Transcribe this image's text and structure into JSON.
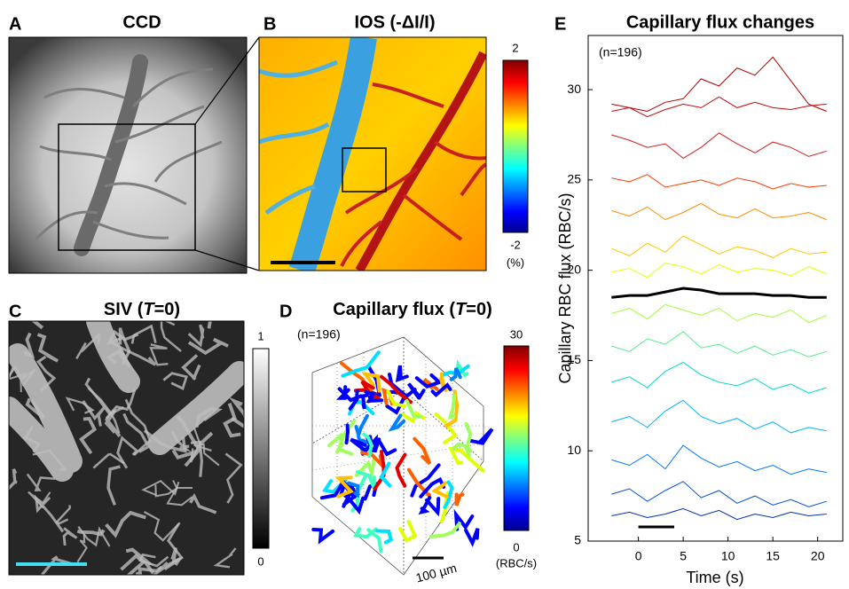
{
  "panels": {
    "A": {
      "letter": "A",
      "title": "CCD"
    },
    "B": {
      "letter": "B",
      "title": "IOS (-ΔI/I)",
      "colorbar": {
        "max": "2",
        "min": "-2",
        "unit": "(%)"
      }
    },
    "C": {
      "letter": "C",
      "title": [
        "SIV (",
        "T",
        "=0)"
      ],
      "colorbar": {
        "max": "1",
        "min": "0"
      }
    },
    "D": {
      "letter": "D",
      "title": [
        "Capillary flux (",
        "T",
        "=0)"
      ],
      "annotation": "(n=196)",
      "scale": "100 µm",
      "colorbar": {
        "max": "30",
        "min": "0",
        "unit": "(RBC/s)"
      }
    }
  },
  "chart_data": {
    "type": "line",
    "letter": "E",
    "title": "Capillary flux changes",
    "annotation": "(n=196)",
    "x_label": "Time (s)",
    "y_label": "Capillary RBC flux (RBC/s)",
    "x": [
      -3,
      -1,
      1,
      3,
      5,
      7,
      9,
      11,
      13,
      15,
      17,
      19,
      21
    ],
    "xlim": [
      -5.6,
      22.8
    ],
    "ylim": [
      5,
      33
    ],
    "xticks": [
      0,
      5,
      10,
      15,
      20
    ],
    "yticks": [
      5,
      10,
      15,
      20,
      25,
      30
    ],
    "series": [
      {
        "color": "#b40000",
        "width": 1,
        "values": [
          29.2,
          29.0,
          28.8,
          29.3,
          29.5,
          30.6,
          30.2,
          31.2,
          30.8,
          31.8,
          30.5,
          29.2,
          28.8
        ]
      },
      {
        "color": "#c80a0a",
        "width": 1,
        "values": [
          28.8,
          29.0,
          28.5,
          28.9,
          29.2,
          29.0,
          29.6,
          29.0,
          29.3,
          29.0,
          28.9,
          29.1,
          29.2
        ]
      },
      {
        "color": "#d21e1e",
        "width": 1,
        "values": [
          27.5,
          27.2,
          26.8,
          27.0,
          26.2,
          26.8,
          27.6,
          27.0,
          26.5,
          27.1,
          26.8,
          26.3,
          26.6
        ]
      },
      {
        "color": "#ff3c00",
        "width": 1,
        "values": [
          25.1,
          24.9,
          25.3,
          24.6,
          24.8,
          25.0,
          24.7,
          25.1,
          24.9,
          24.5,
          24.8,
          24.6,
          24.7
        ]
      },
      {
        "color": "#ff8c00",
        "width": 1,
        "values": [
          23.3,
          23.0,
          23.5,
          22.8,
          23.2,
          23.7,
          23.1,
          22.9,
          23.4,
          22.9,
          23.0,
          23.2,
          22.8
        ]
      },
      {
        "color": "#ffc800",
        "width": 1,
        "values": [
          21.2,
          20.8,
          21.5,
          21.0,
          21.9,
          21.4,
          20.9,
          21.3,
          21.1,
          20.7,
          21.2,
          20.9,
          21.0
        ]
      },
      {
        "color": "#e6ff00",
        "width": 1,
        "values": [
          19.9,
          20.1,
          19.6,
          20.4,
          20.2,
          19.8,
          20.3,
          19.9,
          20.1,
          20.0,
          19.7,
          20.2,
          19.8
        ]
      },
      {
        "color": "#a0ff3c",
        "width": 1,
        "values": [
          17.6,
          17.9,
          17.3,
          18.1,
          17.8,
          17.5,
          17.9,
          17.2,
          17.6,
          17.4,
          17.8,
          17.1,
          17.5
        ]
      },
      {
        "color": "#50f08c",
        "width": 1,
        "values": [
          15.8,
          15.5,
          16.2,
          15.9,
          16.6,
          15.7,
          15.9,
          15.4,
          15.8,
          15.3,
          15.6,
          15.2,
          15.5
        ]
      },
      {
        "color": "#00dcc8",
        "width": 1,
        "values": [
          13.8,
          14.1,
          13.5,
          14.4,
          14.9,
          14.2,
          13.8,
          13.6,
          14.0,
          13.4,
          13.7,
          13.2,
          13.5
        ]
      },
      {
        "color": "#00b4ff",
        "width": 1,
        "values": [
          11.6,
          11.9,
          11.3,
          12.2,
          12.8,
          11.9,
          11.5,
          11.8,
          11.2,
          11.6,
          11.0,
          11.3,
          11.1
        ]
      },
      {
        "color": "#0078ff",
        "width": 1,
        "values": [
          9.5,
          9.2,
          9.8,
          9.0,
          10.3,
          9.6,
          9.1,
          9.4,
          8.9,
          9.2,
          8.7,
          9.0,
          8.8
        ]
      },
      {
        "color": "#0050dc",
        "width": 1,
        "values": [
          7.6,
          7.9,
          7.2,
          7.8,
          8.3,
          7.4,
          7.8,
          7.1,
          7.5,
          7.0,
          7.3,
          6.9,
          7.2
        ]
      },
      {
        "color": "#0032b4",
        "width": 1,
        "values": [
          6.4,
          6.6,
          6.3,
          6.5,
          6.8,
          6.4,
          6.7,
          6.2,
          6.5,
          6.3,
          6.6,
          6.4,
          6.5
        ]
      },
      {
        "color": "#000000",
        "width": 3,
        "values": [
          18.5,
          18.6,
          18.6,
          18.8,
          19.0,
          18.9,
          18.7,
          18.7,
          18.7,
          18.6,
          18.6,
          18.5,
          18.5
        ]
      }
    ]
  }
}
